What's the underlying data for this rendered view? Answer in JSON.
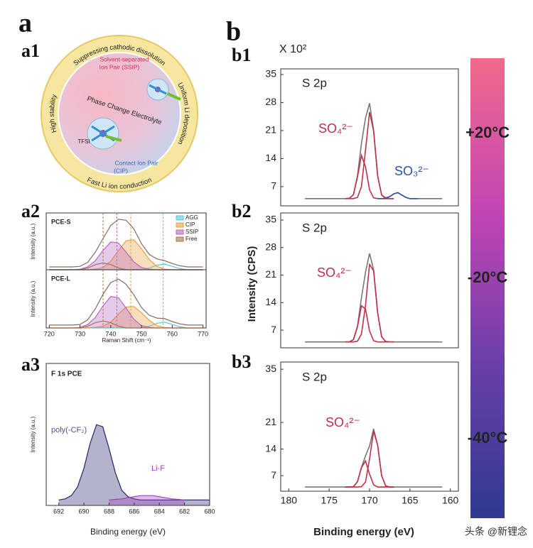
{
  "panel_labels": {
    "a": "a",
    "a1": "a1",
    "a2": "a2",
    "a3": "a3",
    "b": "b",
    "b1": "b1",
    "b2": "b2",
    "b3": "b3"
  },
  "diagram": {
    "ring": [
      "Suppressing cathodic dissolution",
      "Uniform Li deposition",
      "Fast Li ion conduction",
      "High stability"
    ],
    "ssip": [
      "Solvent-separated",
      "Ion Pair (SSIP)"
    ],
    "center": "Phase Change Electrolyte",
    "cip": [
      "Contact Ion Pair",
      "(CIP)"
    ],
    "anion": "TFSI"
  },
  "colorbar": {
    "colors": [
      "#f06a8a",
      "#c345b5",
      "#6a3fa8",
      "#2f3a8f"
    ],
    "labels": [
      "+20°C",
      "-20°C",
      "-40°C"
    ]
  },
  "watermark": "头条 @新锂念",
  "chart_data": [
    {
      "type": "line",
      "title": "PCE-S",
      "ylabel": "Intensity (a.u.)",
      "xlim": [
        719,
        771
      ],
      "ylim": [
        0,
        1
      ],
      "legend": "upper right",
      "x": [
        720,
        722.5,
        725,
        727.5,
        730,
        732.5,
        735,
        737.5,
        740,
        742.5,
        745,
        747.5,
        750,
        752.5,
        755,
        757.5,
        760,
        762.5,
        765,
        767.5,
        770
      ],
      "reference_lines": [
        {
          "x": 737.5,
          "color": "#a07850"
        },
        {
          "x": 742,
          "color": "#b868c0"
        },
        {
          "x": 746.5,
          "color": "#e0a040"
        },
        {
          "x": 757,
          "color": "#5cc8d8"
        }
      ],
      "series": [
        {
          "color": "#8a6a60",
          "values": [
            0.05,
            0.05,
            0.05,
            0.05,
            0.06,
            0.13,
            0.31,
            0.55,
            0.78,
            0.89,
            0.87,
            0.72,
            0.46,
            0.27,
            0.19,
            0.16,
            0.11,
            0.07,
            0.05,
            0.05,
            0.05
          ]
        },
        {
          "name": "AGG",
          "color": "#5cc8d8",
          "values": [
            0,
            0,
            0,
            0,
            0,
            0,
            0,
            0,
            0,
            0,
            0,
            0,
            0,
            0.03,
            0.08,
            0.1,
            0.06,
            0.02,
            0,
            0,
            0
          ]
        },
        {
          "name": "CIP",
          "color": "#e8a040",
          "fill": true,
          "values": [
            0,
            0,
            0,
            0,
            0,
            0,
            0.01,
            0.04,
            0.15,
            0.34,
            0.51,
            0.53,
            0.37,
            0.18,
            0.06,
            0.01,
            0,
            0,
            0,
            0,
            0
          ]
        },
        {
          "name": "SSIP",
          "color": "#b868c0",
          "fill": true,
          "values": [
            0,
            0,
            0,
            0,
            0.01,
            0.05,
            0.16,
            0.34,
            0.49,
            0.47,
            0.31,
            0.14,
            0.04,
            0.01,
            0,
            0,
            0,
            0,
            0,
            0,
            0
          ]
        },
        {
          "name": "Free",
          "color": "#a07850",
          "values": [
            0,
            0,
            0,
            0,
            0,
            0.03,
            0.09,
            0.12,
            0.09,
            0.03,
            0,
            0,
            0,
            0,
            0,
            0,
            0,
            0,
            0,
            0,
            0
          ]
        }
      ]
    },
    {
      "type": "line",
      "title": "PCE-L",
      "ylabel": "Intensity (a.u.)",
      "xlabel": "Raman Shift (cm⁻¹)",
      "xlim": [
        719,
        771
      ],
      "ylim": [
        0,
        1
      ],
      "xticks": [
        720,
        730,
        740,
        750,
        760,
        770
      ],
      "x": [
        720,
        722.5,
        725,
        727.5,
        730,
        732.5,
        735,
        737.5,
        740,
        742.5,
        745,
        747.5,
        750,
        752.5,
        755,
        757.5,
        760,
        762.5,
        765,
        767.5,
        770
      ],
      "reference_lines": [
        {
          "x": 737.5,
          "color": "#a07850"
        },
        {
          "x": 742,
          "color": "#b868c0"
        },
        {
          "x": 746.5,
          "color": "#e0a040"
        },
        {
          "x": 757,
          "color": "#5cc8d8"
        }
      ],
      "series": [
        {
          "color": "#8a6a60",
          "values": [
            0.05,
            0.05,
            0.05,
            0.05,
            0.06,
            0.14,
            0.33,
            0.58,
            0.78,
            0.84,
            0.75,
            0.57,
            0.35,
            0.22,
            0.17,
            0.16,
            0.11,
            0.07,
            0.05,
            0.05,
            0.05
          ]
        },
        {
          "color": "#5cc8d8",
          "values": [
            0,
            0,
            0,
            0,
            0,
            0,
            0,
            0,
            0,
            0,
            0,
            0,
            0,
            0.03,
            0.08,
            0.1,
            0.06,
            0.02,
            0,
            0,
            0
          ]
        },
        {
          "color": "#e8a040",
          "fill": true,
          "values": [
            0,
            0,
            0,
            0,
            0,
            0,
            0.01,
            0.03,
            0.1,
            0.24,
            0.36,
            0.37,
            0.26,
            0.13,
            0.04,
            0.01,
            0,
            0,
            0,
            0,
            0
          ]
        },
        {
          "color": "#b868c0",
          "fill": true,
          "values": [
            0,
            0,
            0,
            0,
            0.01,
            0.06,
            0.18,
            0.38,
            0.54,
            0.52,
            0.34,
            0.15,
            0.04,
            0.01,
            0,
            0,
            0,
            0,
            0,
            0,
            0
          ]
        },
        {
          "color": "#a07850",
          "values": [
            0,
            0,
            0,
            0,
            0,
            0.03,
            0.09,
            0.12,
            0.09,
            0.03,
            0,
            0,
            0,
            0,
            0,
            0,
            0,
            0,
            0,
            0,
            0
          ]
        }
      ]
    },
    {
      "type": "line",
      "title": "F 1s PCE",
      "ylabel": "Intensity (a.u.)",
      "xlabel": "Binding energy (eV)",
      "xlim": [
        693,
        680
      ],
      "ylim": [
        0,
        1.3
      ],
      "xticks": [
        692,
        690,
        688,
        686,
        684,
        682,
        680
      ],
      "x": [
        692,
        691.5,
        691,
        690.5,
        690,
        689.5,
        689,
        688.5,
        688,
        687.5,
        687,
        686.5,
        686,
        685.5,
        685,
        684.5,
        684,
        683.5,
        683,
        682.5,
        682,
        681.5,
        681,
        680.5,
        680
      ],
      "annotations": [
        {
          "text": "poly(-CF₂)",
          "color": "#50509a"
        },
        {
          "text": "Li-F",
          "color": "#a040c0"
        }
      ],
      "series": [
        {
          "color": "#25256a",
          "fill": true,
          "values": [
            0.05,
            0.06,
            0.09,
            0.17,
            0.34,
            0.57,
            0.74,
            0.72,
            0.52,
            0.3,
            0.14,
            0.08,
            0.06,
            0.05,
            0.05,
            0.05,
            0.05,
            0.05,
            0.05,
            0.05,
            0.05,
            0.05,
            0.05,
            0.05,
            0.05
          ]
        },
        {
          "color": "#a040c0",
          "fill": true,
          "values": [
            null,
            null,
            null,
            null,
            null,
            null,
            null,
            null,
            0.05,
            0.055,
            0.06,
            0.07,
            0.08,
            0.09,
            0.09,
            0.09,
            0.08,
            0.07,
            0.06,
            0.055,
            0.05,
            null,
            null,
            null,
            null
          ]
        }
      ]
    },
    {
      "type": "line",
      "title": "S 2p",
      "y_multiplier": "X 10²",
      "xlim": [
        181,
        159
      ],
      "ylim": [
        2.2,
        36.4
      ],
      "yticks": [
        7,
        14,
        21,
        28,
        35
      ],
      "x": [
        178,
        176,
        174,
        173,
        172.5,
        172,
        171.5,
        171,
        170.5,
        170,
        169.5,
        169,
        168.5,
        168,
        167.5,
        167,
        166.5,
        166,
        165.5,
        165,
        164,
        162,
        161
      ],
      "annotations": [
        {
          "text": "SO₄²⁻",
          "color": "#c0304a"
        },
        {
          "text": "SO₃²⁻",
          "color": "#3050a0"
        }
      ],
      "series": [
        {
          "color": "#777777",
          "values": [
            4,
            4,
            4,
            4,
            4.1,
            5.0,
            9.7,
            17.8,
            24.1,
            27.8,
            21.1,
            9.7,
            4.9,
            4.2,
            4.5,
            5.2,
            5.5,
            4.9,
            4.3,
            4.0,
            4,
            4,
            4
          ]
        },
        {
          "color": "#c0304a",
          "values": [
            null,
            null,
            null,
            4,
            4,
            4.0,
            4.3,
            7.0,
            16.1,
            25.6,
            20.9,
            9.7,
            4.9,
            4.1,
            4,
            4,
            null,
            null,
            null,
            null,
            null,
            null,
            null
          ]
        },
        {
          "color": "#c0304a",
          "values": [
            null,
            null,
            null,
            4,
            4.1,
            5.0,
            9.4,
            14.8,
            12.0,
            6.2,
            4.2,
            4,
            4,
            4,
            4,
            4,
            null,
            null,
            null,
            null,
            null,
            null,
            null
          ]
        },
        {
          "color": "#3050a0",
          "values": [
            null,
            null,
            null,
            null,
            null,
            null,
            null,
            null,
            null,
            null,
            null,
            4,
            4,
            4.1,
            4.5,
            5.2,
            5.5,
            4.9,
            4.3,
            4.0,
            4,
            null,
            null
          ]
        }
      ]
    },
    {
      "type": "line",
      "title": "S 2p",
      "ylabel": "Intensity (CPS)",
      "xlim": [
        181,
        159
      ],
      "ylim": [
        2.5,
        36.8
      ],
      "yticks": [
        7,
        14,
        21,
        28,
        35
      ],
      "x": [
        178,
        176,
        174,
        173,
        172.5,
        172,
        171.5,
        171,
        170.5,
        170,
        169.5,
        169,
        168.5,
        168,
        167.5,
        167,
        166.5,
        166,
        165.5,
        165,
        164,
        162,
        161
      ],
      "annotations": [
        {
          "text": "SO₄²⁻",
          "color": "#c0304a"
        }
      ],
      "series": [
        {
          "color": "#777777",
          "values": [
            4,
            4,
            4,
            4,
            4,
            4.6,
            8.0,
            15.2,
            21.7,
            26.5,
            22.4,
            11.4,
            5.3,
            4.1,
            4,
            4,
            4,
            4,
            4,
            4,
            4,
            4,
            4
          ]
        },
        {
          "color": "#c0304a",
          "values": [
            null,
            null,
            null,
            4,
            4,
            4,
            4.2,
            6.0,
            13.3,
            23.7,
            22.1,
            11.4,
            5.3,
            4.1,
            4,
            4,
            null,
            null,
            null,
            null,
            null,
            null,
            null
          ]
        },
        {
          "color": "#c0304a",
          "values": [
            null,
            null,
            null,
            4,
            4.0,
            4.6,
            7.8,
            13.2,
            12.4,
            6.8,
            4.3,
            4,
            4,
            4,
            4,
            4,
            null,
            null,
            null,
            null,
            null,
            null,
            null
          ]
        }
      ]
    },
    {
      "type": "line",
      "title": "S 2p",
      "xlabel": "Binding energy (eV)",
      "xlim": [
        181,
        159
      ],
      "ylim": [
        2.9,
        36.9
      ],
      "yticks": [
        7,
        14,
        21,
        35
      ],
      "xticks": [
        180,
        175,
        170,
        165,
        160
      ],
      "x": [
        178,
        176,
        174,
        173,
        172.5,
        172,
        171.5,
        171,
        170.5,
        170,
        169.5,
        169,
        168.5,
        168,
        167.5,
        167,
        166.5,
        166,
        165.5,
        165,
        164,
        162,
        161
      ],
      "annotations": [
        {
          "text": "SO₄²⁻",
          "color": "#c0304a"
        }
      ],
      "series": [
        {
          "color": "#777777",
          "values": [
            4,
            4,
            4,
            4,
            4,
            4.1,
            5.4,
            9.2,
            12.2,
            14.8,
            19.3,
            15.0,
            7.0,
            4.3,
            4,
            4,
            4,
            4,
            4,
            4,
            4,
            4,
            4
          ]
        },
        {
          "color": "#c0304a",
          "values": [
            null,
            null,
            null,
            4,
            4,
            4,
            4,
            4.1,
            5.3,
            11.4,
            18.7,
            15.0,
            7.0,
            4.3,
            4,
            4,
            null,
            null,
            null,
            null,
            null,
            null,
            null
          ]
        },
        {
          "color": "#c0304a",
          "values": [
            null,
            null,
            null,
            4,
            4,
            4.1,
            5.4,
            9.1,
            10.9,
            7.4,
            4.6,
            4.0,
            4,
            4,
            4,
            4,
            null,
            null,
            null,
            null,
            null,
            null,
            null
          ]
        }
      ]
    }
  ]
}
